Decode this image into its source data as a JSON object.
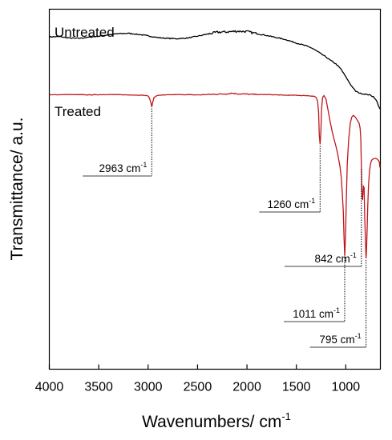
{
  "chart_data": {
    "type": "line",
    "xlabel": "Wavenumbers/ cm",
    "xlabel_sup": "-1",
    "ylabel": "Transmittance/ a.u.",
    "xlim": [
      4000,
      650
    ],
    "x_reversed": true,
    "ylim": [
      0,
      1
    ],
    "x_ticks": [
      4000,
      3500,
      3000,
      2500,
      2000,
      1500,
      1000
    ],
    "x_tick_labels": [
      "4000",
      "3500",
      "3000",
      "2500",
      "2000",
      "1500",
      "1000"
    ],
    "y_ticks": "none",
    "series": [
      {
        "name": "Untreated",
        "color": "#000000",
        "x": [
          4000,
          3900,
          3800,
          3700,
          3600,
          3500,
          3400,
          3300,
          3200,
          3100,
          3000,
          2900,
          2800,
          2700,
          2600,
          2500,
          2400,
          2300,
          2200,
          2100,
          2000,
          1900,
          1800,
          1700,
          1600,
          1500,
          1450,
          1400,
          1350,
          1300,
          1250,
          1200,
          1150,
          1100,
          1050,
          1000,
          950,
          900,
          850,
          800,
          760,
          720,
          690,
          670,
          655
        ],
        "y": [
          0.923,
          0.924,
          0.92,
          0.919,
          0.922,
          0.925,
          0.929,
          0.932,
          0.933,
          0.93,
          0.926,
          0.921,
          0.919,
          0.918,
          0.92,
          0.925,
          0.931,
          0.936,
          0.937,
          0.939,
          0.938,
          0.932,
          0.927,
          0.921,
          0.915,
          0.906,
          0.902,
          0.898,
          0.893,
          0.885,
          0.876,
          0.867,
          0.857,
          0.848,
          0.834,
          0.812,
          0.79,
          0.772,
          0.766,
          0.764,
          0.762,
          0.757,
          0.746,
          0.733,
          0.723
        ]
      },
      {
        "name": "Treated",
        "color": "#c0161b",
        "x": [
          4000,
          3800,
          3600,
          3400,
          3200,
          3050,
          3000,
          2985,
          2970,
          2963,
          2955,
          2940,
          2900,
          2700,
          2500,
          2300,
          2200,
          2150,
          2100,
          2000,
          1900,
          1800,
          1700,
          1600,
          1500,
          1450,
          1400,
          1350,
          1320,
          1300,
          1285,
          1275,
          1268,
          1260,
          1252,
          1245,
          1235,
          1220,
          1200,
          1180,
          1160,
          1140,
          1120,
          1100,
          1080,
          1060,
          1045,
          1035,
          1025,
          1018,
          1011,
          1004,
          995,
          985,
          970,
          955,
          940,
          925,
          910,
          895,
          880,
          865,
          855,
          848,
          842,
          836,
          830,
          822,
          815,
          808,
          800,
          795,
          790,
          784,
          778,
          770,
          760,
          750,
          740,
          725,
          710,
          700,
          690,
          680,
          670,
          660,
          655
        ],
        "y": [
          0.762,
          0.763,
          0.762,
          0.763,
          0.762,
          0.761,
          0.759,
          0.752,
          0.738,
          0.729,
          0.74,
          0.755,
          0.761,
          0.763,
          0.762,
          0.764,
          0.765,
          0.767,
          0.765,
          0.764,
          0.763,
          0.763,
          0.762,
          0.761,
          0.761,
          0.76,
          0.76,
          0.759,
          0.758,
          0.755,
          0.744,
          0.715,
          0.65,
          0.625,
          0.66,
          0.72,
          0.755,
          0.76,
          0.75,
          0.72,
          0.69,
          0.663,
          0.64,
          0.62,
          0.595,
          0.565,
          0.53,
          0.49,
          0.435,
          0.37,
          0.315,
          0.36,
          0.47,
          0.57,
          0.64,
          0.682,
          0.7,
          0.705,
          0.702,
          0.697,
          0.69,
          0.683,
          0.67,
          0.64,
          0.56,
          0.48,
          0.47,
          0.508,
          0.505,
          0.42,
          0.35,
          0.308,
          0.33,
          0.39,
          0.45,
          0.51,
          0.55,
          0.57,
          0.58,
          0.584,
          0.585,
          0.586,
          0.585,
          0.583,
          0.58,
          0.575,
          0.56
        ]
      }
    ],
    "annotations": [
      {
        "label": "2963 cm",
        "sup": "-1",
        "peak_x": 2963,
        "peak_y": 0.729
      },
      {
        "label": "1260 cm",
        "sup": "-1",
        "peak_x": 1260,
        "peak_y": 0.625
      },
      {
        "label": "842 cm",
        "sup": "-1",
        "peak_x": 842,
        "peak_y": 0.56
      },
      {
        "label": "1011 cm",
        "sup": "-1",
        "peak_x": 1011,
        "peak_y": 0.315
      },
      {
        "label": "795 cm",
        "sup": "-1",
        "peak_x": 795,
        "peak_y": 0.308
      }
    ],
    "grid": false,
    "legend": "none"
  }
}
